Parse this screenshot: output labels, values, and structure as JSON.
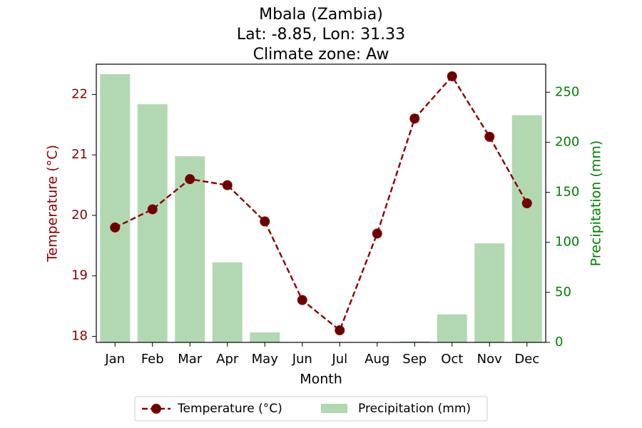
{
  "chart_data": {
    "type": "bar+line",
    "title_lines": [
      "Mbala (Zambia)",
      "Lat: -8.85, Lon: 31.33",
      "Climate zone: Aw"
    ],
    "xlabel": "Month",
    "y_left_label": "Temperature (°C)",
    "y_right_label": "Precipitation (mm)",
    "categories": [
      "Jan",
      "Feb",
      "Mar",
      "Apr",
      "May",
      "Jun",
      "Jul",
      "Aug",
      "Sep",
      "Oct",
      "Nov",
      "Dec"
    ],
    "y_left_range": [
      17.9,
      22.5
    ],
    "y_left_ticks": [
      18,
      19,
      20,
      21,
      22
    ],
    "y_right_range": [
      0,
      278
    ],
    "y_right_ticks": [
      0,
      50,
      100,
      150,
      200,
      250
    ],
    "grid": false,
    "legend_position": "below",
    "series": [
      {
        "name": "Temperature (°C)",
        "kind": "line",
        "axis": "left",
        "style": "dashed, circle markers",
        "color": "#8b0000",
        "values": [
          19.8,
          20.1,
          20.6,
          20.5,
          19.9,
          18.6,
          18.1,
          19.7,
          21.6,
          22.3,
          21.3,
          20.2
        ]
      },
      {
        "name": "Precipitation (mm)",
        "kind": "bar",
        "axis": "right",
        "color": "#b2d8b2",
        "values": [
          268,
          238,
          186,
          80,
          10,
          0,
          0,
          0,
          1,
          28,
          99,
          227
        ]
      }
    ],
    "left_axis_color": "#8b0000",
    "right_axis_color": "#008000"
  }
}
